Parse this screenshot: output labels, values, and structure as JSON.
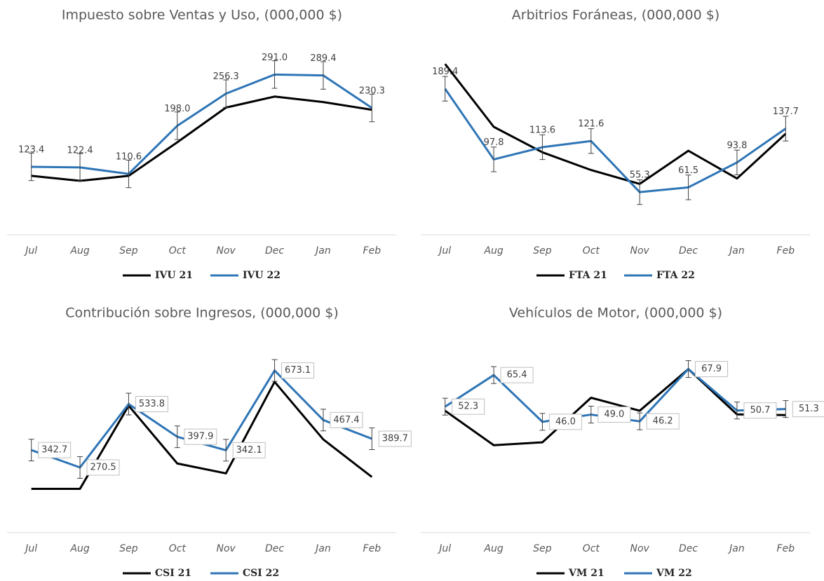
{
  "chart_data": [
    {
      "type": "line",
      "title": "Impuesto sobre Ventas y Uso, (000,000 $)",
      "categories": [
        "Jul",
        "Aug",
        "Sep",
        "Oct",
        "Nov",
        "Dec",
        "Jan",
        "Feb"
      ],
      "series": [
        {
          "name": "IVU 21",
          "color": "#000000",
          "values": [
            107,
            98,
            107,
            168,
            231,
            251,
            241,
            227
          ]
        },
        {
          "name": "IVU 22",
          "color": "#2e75b6",
          "values": [
            123.4,
            122.4,
            110.6,
            198.0,
            256.3,
            291.0,
            289.4,
            230.3
          ],
          "value_labels": [
            "123.4",
            "122.4",
            "110.6",
            "198.0",
            "256.3",
            "291.0",
            "289.4",
            "230.3"
          ],
          "error": 25
        }
      ],
      "ylim": [
        0,
        350
      ]
    },
    {
      "type": "line",
      "title": "Arbitrios Foráneas, (000,000 $)",
      "categories": [
        "Jul",
        "Aug",
        "Sep",
        "Oct",
        "Nov",
        "Dec",
        "Jan",
        "Feb"
      ],
      "series": [
        {
          "name": "FTA 21",
          "color": "#000000",
          "values": [
            221.6,
            140,
            107,
            84,
            66,
            109,
            73,
            131
          ]
        },
        {
          "name": "FTA 22",
          "color": "#2e75b6",
          "values": [
            189.4,
            97.8,
            113.6,
            121.6,
            55.3,
            61.5,
            93.8,
            137.7
          ],
          "value_labels": [
            "189.4",
            "97.8",
            "113.6",
            "121.6",
            "55.3",
            "61.5",
            "93.8",
            "137.7"
          ],
          "error": 16
        }
      ],
      "ylim": [
        0,
        250
      ]
    },
    {
      "type": "line",
      "title": "Contribución sobre Ingresos, (000,000 $)",
      "categories": [
        "Jul",
        "Aug",
        "Sep",
        "Oct",
        "Nov",
        "Dec",
        "Jan",
        "Feb"
      ],
      "series": [
        {
          "name": "CSI 21",
          "color": "#000000",
          "values": [
            182,
            182,
            527,
            287,
            246,
            626,
            387,
            231
          ]
        },
        {
          "name": "CSI 22",
          "color": "#2e75b6",
          "values": [
            342.7,
            270.5,
            533.8,
            397.9,
            342.1,
            673.1,
            467.4,
            389.7
          ],
          "value_labels": [
            "342.7",
            "270.5",
            "533.8",
            "397.9",
            "342.1",
            "673.1",
            "467.4",
            "389.7"
          ],
          "error": 45
        }
      ],
      "ylim": [
        0,
        800
      ]
    },
    {
      "type": "line",
      "title": "Vehículos de Motor, (000,000 $)",
      "categories": [
        "Jul",
        "Aug",
        "Sep",
        "Oct",
        "Nov",
        "Dec",
        "Jan",
        "Feb"
      ],
      "series": [
        {
          "name": "VM 21",
          "color": "#000000",
          "values": [
            50.6,
            36.3,
            37.5,
            56.0,
            50.6,
            67.9,
            49.1,
            48.8
          ]
        },
        {
          "name": "VM 22",
          "color": "#2e75b6",
          "values": [
            52.3,
            65.4,
            46.0,
            49.0,
            46.2,
            67.9,
            50.7,
            51.3
          ],
          "value_labels": [
            "52.3",
            "65.4",
            "46.0",
            "49.0",
            "46.2",
            "67.9",
            "50.7",
            "51.3"
          ],
          "error": 3.5
        }
      ],
      "ylim": [
        0,
        80
      ]
    }
  ]
}
